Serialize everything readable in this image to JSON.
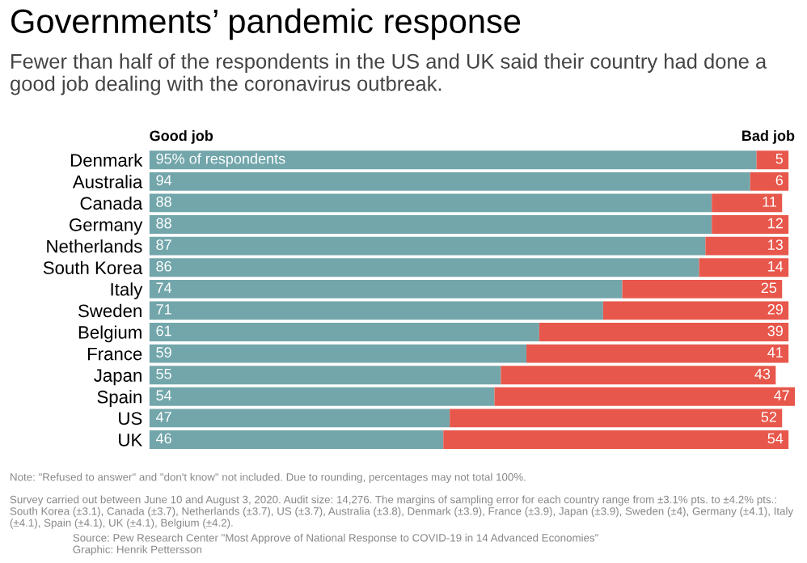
{
  "chart_data": {
    "type": "bar",
    "orientation": "horizontal",
    "stacked": true,
    "title": "Governments’ pandemic response",
    "subtitle": "Fewer than half of the respondents in the US and UK said their country had done a good job dealing with the coronavirus outbreak.",
    "categories": [
      "Denmark",
      "Australia",
      "Canada",
      "Germany",
      "Netherlands",
      "South Korea",
      "Italy",
      "Sweden",
      "Belgium",
      "France",
      "Japan",
      "Spain",
      "US",
      "UK"
    ],
    "series": [
      {
        "name": "Good job",
        "color": "#72a6ab",
        "values": [
          95,
          94,
          88,
          88,
          87,
          86,
          74,
          71,
          61,
          59,
          55,
          54,
          47,
          46
        ],
        "value_labels": [
          "95% of respondents",
          "94",
          "88",
          "88",
          "87",
          "86",
          "74",
          "71",
          "61",
          "59",
          "55",
          "54",
          "47",
          "46"
        ]
      },
      {
        "name": "Bad job",
        "color": "#e8574b",
        "values": [
          5,
          6,
          11,
          12,
          13,
          14,
          25,
          29,
          39,
          41,
          43,
          47,
          52,
          54
        ],
        "value_labels": [
          "5",
          "6",
          "11",
          "12",
          "13",
          "14",
          "25",
          "29",
          "39",
          "41",
          "43",
          "47",
          "52",
          "54"
        ]
      }
    ],
    "annotations": [
      "Note: \"Refused to answer\" and \"don't know\" not included. Due to rounding, percentages may not total 100%.",
      "Survey carried out between June 10 and August 3, 2020. Audit size: 14,276. The margins of sampling error for each country range from ±3.1% pts. to ±4.2% pts.: South Korea (±3.1), Canada (±3.7), Netherlands (±3.7), US (±3.7), Australia (±3.8), Denmark (±3.9), France (±3.9), Japan (±3.9), Sweden (±4), Germany (±4.1), Italy (±4.1), Spain (±4.1), UK (±4.1), Belgium (±4.2).",
      "Source: Pew Research Center \"Most Approve of National Response to COVID-19 in 14 Advanced Economies\"\nGraphic: Henrik Pettersson"
    ]
  }
}
